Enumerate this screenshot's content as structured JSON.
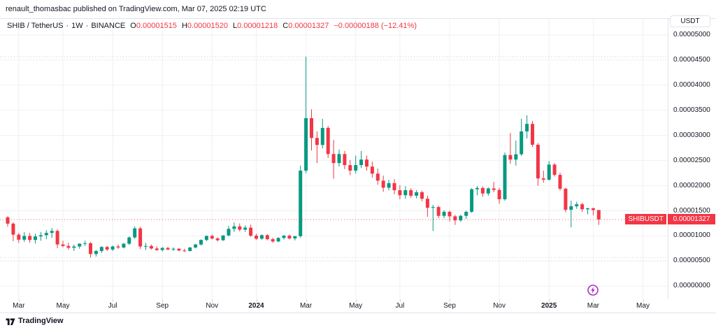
{
  "attribution": {
    "text": "renault_thomasbac published on TradingView.com, Mar 07, 2025 02:19 UTC"
  },
  "legend": {
    "symbol": "SHIB / TetherUS",
    "separator": "·",
    "interval": "1W",
    "exchange": "BINANCE",
    "ohlc": [
      {
        "label": "O",
        "value": "0.00001515"
      },
      {
        "label": "H",
        "value": "0.00001520"
      },
      {
        "label": "L",
        "value": "0.00001218"
      },
      {
        "label": "C",
        "value": "0.00001327"
      }
    ],
    "change": "−0.00000188 (−12.41%)"
  },
  "price_axis": {
    "currency_button": "USDT",
    "labels": [
      "0.00005000",
      "0.00004500",
      "0.00004000",
      "0.00003500",
      "0.00003000",
      "0.00002500",
      "0.00002000",
      "0.00001500",
      "0.00001000",
      "0.00000500",
      "0.00000000"
    ],
    "price_tag": {
      "symbol": "SHIBUSDT",
      "value": "0.00001327"
    }
  },
  "time_axis": {
    "ticks": [
      {
        "label": "Mar",
        "idx": 2,
        "year": false
      },
      {
        "label": "May",
        "idx": 10,
        "year": false
      },
      {
        "label": "Jul",
        "idx": 19,
        "year": false
      },
      {
        "label": "Sep",
        "idx": 28,
        "year": false
      },
      {
        "label": "Nov",
        "idx": 37,
        "year": false
      },
      {
        "label": "2024",
        "idx": 45,
        "year": true
      },
      {
        "label": "Mar",
        "idx": 54,
        "year": false
      },
      {
        "label": "May",
        "idx": 63,
        "year": false
      },
      {
        "label": "Jul",
        "idx": 71,
        "year": false
      },
      {
        "label": "Sep",
        "idx": 80,
        "year": false
      },
      {
        "label": "Nov",
        "idx": 89,
        "year": false
      },
      {
        "label": "2025",
        "idx": 98,
        "year": true
      },
      {
        "label": "Mar",
        "idx": 106,
        "year": false
      },
      {
        "label": "May",
        "idx": 115,
        "year": false
      }
    ]
  },
  "footer": {
    "brand": "TradingView"
  },
  "colors": {
    "up": "#089981",
    "down": "#f23645",
    "grid": "#eef0f5",
    "text": "#131722",
    "axis_border": "#e0e3eb",
    "price_line": "#f23645",
    "hl_line": "#b2b5be",
    "event": "#ab2fc6"
  },
  "chart_data": {
    "type": "candlestick",
    "title": "SHIB / TetherUS weekly candles on BINANCE",
    "symbol": "SHIBUSDT",
    "interval": "1W",
    "price_unit": 1e-08,
    "ylim": [
      -260,
      5320
    ],
    "grid_prices": [
      0,
      500,
      1000,
      1500,
      2000,
      2500,
      3000,
      3500,
      4000,
      4500,
      5000
    ],
    "high_line": 4568,
    "low_line": 570,
    "last_price": 1327,
    "x_start": 11,
    "x_step": 7.9,
    "candles": [
      [
        1370,
        1395,
        1185,
        1245
      ],
      [
        1245,
        1270,
        895,
        1025
      ],
      [
        1025,
        1060,
        860,
        925
      ],
      [
        925,
        1075,
        880,
        1000
      ],
      [
        1000,
        1060,
        865,
        920
      ],
      [
        920,
        1045,
        850,
        990
      ],
      [
        990,
        1075,
        905,
        1015
      ],
      [
        1015,
        1115,
        935,
        1060
      ],
      [
        1060,
        1155,
        960,
        1100
      ],
      [
        1100,
        1130,
        755,
        830
      ],
      [
        830,
        905,
        775,
        800
      ],
      [
        800,
        865,
        725,
        765
      ],
      [
        765,
        830,
        700,
        790
      ],
      [
        790,
        855,
        745,
        845
      ],
      [
        845,
        905,
        800,
        855
      ],
      [
        855,
        880,
        570,
        640
      ],
      [
        640,
        720,
        590,
        700
      ],
      [
        700,
        795,
        660,
        780
      ],
      [
        780,
        800,
        700,
        730
      ],
      [
        730,
        810,
        700,
        790
      ],
      [
        790,
        830,
        740,
        770
      ],
      [
        770,
        860,
        750,
        845
      ],
      [
        845,
        990,
        820,
        970
      ],
      [
        970,
        1190,
        940,
        1150
      ],
      [
        1150,
        1180,
        740,
        790
      ],
      [
        790,
        860,
        720,
        800
      ],
      [
        800,
        830,
        730,
        750
      ],
      [
        750,
        790,
        700,
        720
      ],
      [
        720,
        780,
        690,
        760
      ],
      [
        760,
        785,
        715,
        730
      ],
      [
        730,
        770,
        700,
        745
      ],
      [
        745,
        760,
        695,
        710
      ],
      [
        710,
        745,
        680,
        700
      ],
      [
        700,
        780,
        690,
        770
      ],
      [
        770,
        840,
        750,
        830
      ],
      [
        830,
        930,
        810,
        920
      ],
      [
        920,
        1010,
        895,
        1000
      ],
      [
        1000,
        1030,
        930,
        950
      ],
      [
        950,
        975,
        890,
        915
      ],
      [
        915,
        1015,
        900,
        1010
      ],
      [
        1010,
        1200,
        990,
        1140
      ],
      [
        1140,
        1268,
        1080,
        1190
      ],
      [
        1190,
        1250,
        1090,
        1125
      ],
      [
        1125,
        1210,
        1080,
        1165
      ],
      [
        1165,
        1225,
        980,
        1005
      ],
      [
        1005,
        1045,
        920,
        945
      ],
      [
        945,
        1030,
        925,
        1015
      ],
      [
        1015,
        1035,
        915,
        935
      ],
      [
        935,
        965,
        865,
        890
      ],
      [
        890,
        975,
        875,
        960
      ],
      [
        960,
        1020,
        930,
        1005
      ],
      [
        1005,
        1030,
        930,
        950
      ],
      [
        950,
        1000,
        910,
        995
      ],
      [
        995,
        2400,
        960,
        2300
      ],
      [
        2300,
        4568,
        2250,
        3344
      ],
      [
        3344,
        3520,
        2700,
        2950
      ],
      [
        2950,
        3080,
        2450,
        2810
      ],
      [
        2810,
        3330,
        2740,
        3150
      ],
      [
        3150,
        3190,
        2550,
        2630
      ],
      [
        2630,
        2910,
        2140,
        2450
      ],
      [
        2450,
        2720,
        2380,
        2630
      ],
      [
        2630,
        2690,
        2330,
        2410
      ],
      [
        2410,
        2510,
        2210,
        2300
      ],
      [
        2300,
        2600,
        2240,
        2410
      ],
      [
        2410,
        2690,
        2350,
        2520
      ],
      [
        2520,
        2600,
        2300,
        2380
      ],
      [
        2380,
        2480,
        2160,
        2240
      ],
      [
        2240,
        2340,
        2020,
        2100
      ],
      [
        2100,
        2200,
        1880,
        1960
      ],
      [
        1960,
        2120,
        1910,
        2050
      ],
      [
        2050,
        2130,
        1830,
        1910
      ],
      [
        1910,
        2010,
        1730,
        1810
      ],
      [
        1810,
        1990,
        1740,
        1910
      ],
      [
        1910,
        1950,
        1760,
        1800
      ],
      [
        1800,
        1910,
        1750,
        1870
      ],
      [
        1870,
        1900,
        1690,
        1740
      ],
      [
        1740,
        1800,
        1380,
        1560
      ],
      [
        1560,
        1620,
        1100,
        1575
      ],
      [
        1575,
        1600,
        1350,
        1400
      ],
      [
        1400,
        1510,
        1350,
        1480
      ],
      [
        1480,
        1500,
        1290,
        1390
      ],
      [
        1390,
        1420,
        1220,
        1310
      ],
      [
        1310,
        1420,
        1280,
        1400
      ],
      [
        1400,
        1500,
        1340,
        1480
      ],
      [
        1480,
        1950,
        1460,
        1930
      ],
      [
        1930,
        1990,
        1810,
        1955
      ],
      [
        1955,
        1985,
        1780,
        1845
      ],
      [
        1845,
        1970,
        1800,
        1945
      ],
      [
        1945,
        2075,
        1870,
        1915
      ],
      [
        1915,
        1960,
        1640,
        1730
      ],
      [
        1730,
        2660,
        1700,
        2610
      ],
      [
        2610,
        3050,
        2440,
        2520
      ],
      [
        2520,
        2900,
        2400,
        2625
      ],
      [
        2625,
        3330,
        2590,
        3080
      ],
      [
        3080,
        3400,
        2940,
        3230
      ],
      [
        3230,
        3290,
        2770,
        2815
      ],
      [
        2815,
        2850,
        2000,
        2145
      ],
      [
        2145,
        2300,
        2060,
        2120
      ],
      [
        2120,
        2490,
        2100,
        2420
      ],
      [
        2420,
        2450,
        2180,
        2215
      ],
      [
        2215,
        2260,
        1900,
        1940
      ],
      [
        1940,
        1960,
        1470,
        1520
      ],
      [
        1520,
        1700,
        1170,
        1590
      ],
      [
        1590,
        1680,
        1540,
        1630
      ],
      [
        1630,
        1660,
        1480,
        1530
      ],
      [
        1530,
        1560,
        1430,
        1550
      ],
      [
        1550,
        1565,
        1410,
        1515
      ],
      [
        1515,
        1520,
        1218,
        1327
      ]
    ]
  }
}
